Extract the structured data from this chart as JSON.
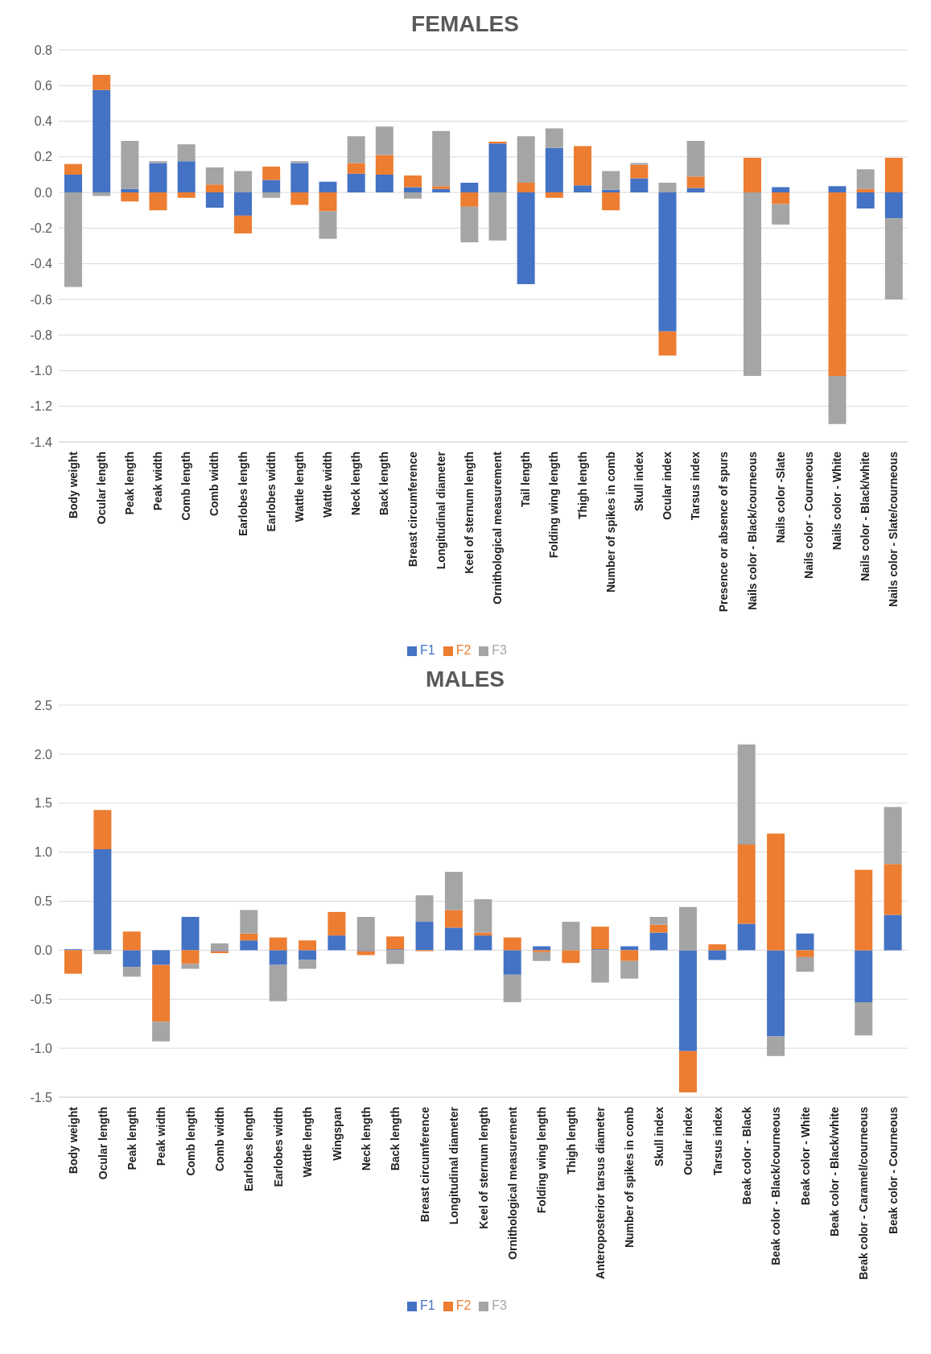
{
  "chart_data": [
    {
      "type": "bar",
      "title": "FEMALES",
      "stacked": true,
      "grid": "y",
      "legend": "bottom",
      "categories": [
        "Body weight",
        "Ocular length",
        "Peak length",
        "Peak width",
        "Comb length",
        "Comb width",
        "Earlobes length",
        "Earlobes width",
        "Wattle length",
        "Wattle width",
        "Neck length",
        "Back length",
        "Breast circumference",
        "Longitudinal diameter",
        "Keel of sternum length",
        "Ornithological measurement",
        "Tail length",
        "Folding wing length",
        "Thigh length",
        "Number of spikes in comb",
        "Skull index",
        "Ocular index",
        "Tarsus index",
        "Presence or absence of spurs",
        "Nails color - Black/courneous",
        "Nails color -Slate",
        "Nails color - Courneous",
        "Nails color - White",
        "Nails color - Black/white",
        "Nails color - Slate/courneous"
      ],
      "ylim": [
        -1.4,
        0.8
      ],
      "yticks": [
        0.8,
        0.6,
        0.4,
        0.2,
        {
          "value": 0,
          "label": "0.0"
        },
        -0.2,
        -0.4,
        -0.6,
        -0.8,
        {
          "value": -1,
          "label": "-1.0"
        },
        -1.2,
        -1.4
      ],
      "series": [
        {
          "name": "F1",
          "color": "#4472c4",
          "values": [
            0.1,
            0.575,
            0.02,
            0.165,
            0.175,
            -0.085,
            -0.13,
            0.07,
            0.165,
            0.06,
            0.105,
            0.1,
            0.03,
            0.02,
            0.055,
            0.275,
            -0.515,
            0.25,
            0.04,
            0.015,
            0.08,
            -0.78,
            0.025,
            0,
            0,
            0.03,
            0,
            0.035,
            -0.09,
            -0.145
          ]
        },
        {
          "name": "F2",
          "color": "#ed7d31",
          "values": [
            0.06,
            0.085,
            -0.05,
            -0.1,
            -0.03,
            0.045,
            -0.1,
            0.075,
            -0.07,
            -0.105,
            0.06,
            0.11,
            0.065,
            0.015,
            -0.08,
            0.01,
            0.055,
            -0.03,
            0.22,
            -0.1,
            0.075,
            -0.135,
            0.065,
            0,
            0.195,
            -0.065,
            0,
            -1.03,
            0.02,
            0.195
          ]
        },
        {
          "name": "F3",
          "color": "#a5a5a5",
          "values": [
            -0.53,
            -0.02,
            0.27,
            0.01,
            0.095,
            0.095,
            0.12,
            -0.03,
            0.01,
            -0.155,
            0.15,
            0.16,
            -0.035,
            0.31,
            -0.2,
            -0.27,
            0.26,
            0.11,
            null,
            0.105,
            0.01,
            0.055,
            0.2,
            0,
            -1.03,
            -0.115,
            0,
            -0.27,
            0.11,
            -0.455
          ]
        }
      ]
    },
    {
      "type": "bar",
      "title": "MALES",
      "stacked": true,
      "grid": "y",
      "legend": "bottom",
      "categories": [
        "Body weight",
        "Ocular length",
        "Peak length",
        "Peak width",
        "Comb length",
        "Comb width",
        "Earlobes length",
        "Earlobes width",
        "Wattle length",
        "Wingspan",
        "Neck length",
        "Back length",
        "Breast circumference",
        "Longitudinal diameter",
        "Keel of sternum length",
        "Ornithological measurement",
        "Folding wing length",
        "Thigh length",
        "Anteroposterior tarsus diameter",
        "Number of spikes in comb",
        "Skull index",
        "Ocular index",
        "Tarsus index",
        "Beak color - Black",
        "Beak color - Black/courneous",
        "Beak color - White",
        "Beak color - Black/white",
        "Beak color - Caramel/courneous",
        "Beak color - Courneous"
      ],
      "ylim": [
        -1.5,
        2.5
      ],
      "yticks": [
        2.5,
        {
          "value": 2,
          "label": "2.0"
        },
        1.5,
        {
          "value": 1,
          "label": "1.0"
        },
        0.5,
        {
          "value": 0,
          "label": "0.0"
        },
        -0.5,
        {
          "value": -1,
          "label": "-1.0"
        },
        -1.5
      ],
      "series": [
        {
          "name": "F1",
          "color": "#4472c4",
          "values": [
            0.01,
            1.03,
            -0.17,
            -0.15,
            0.34,
            -0.01,
            0.1,
            -0.15,
            -0.1,
            0.15,
            -0.01,
            0.01,
            0.29,
            0.23,
            0.15,
            -0.25,
            0.04,
            0,
            0.01,
            0.04,
            0.18,
            -1.03,
            -0.1,
            0.27,
            -0.88,
            0.17,
            0,
            -0.53,
            0.36
          ]
        },
        {
          "name": "F2",
          "color": "#ed7d31",
          "values": [
            -0.24,
            0.4,
            0.19,
            -0.58,
            -0.14,
            -0.02,
            0.07,
            0.13,
            0.1,
            0.24,
            -0.04,
            0.13,
            -0.01,
            0.18,
            0.03,
            0.13,
            -0.02,
            -0.13,
            0.23,
            -0.11,
            0.08,
            -0.42,
            0.06,
            0.81,
            1.19,
            -0.07,
            0,
            0.82,
            0.52
          ]
        },
        {
          "name": "F3",
          "color": "#a5a5a5",
          "values": [
            0,
            -0.04,
            -0.1,
            -0.2,
            -0.05,
            0.07,
            0.24,
            -0.37,
            -0.09,
            null,
            0.34,
            -0.14,
            0.27,
            0.39,
            0.34,
            -0.28,
            -0.09,
            0.29,
            -0.33,
            -0.18,
            0.08,
            0.44,
            null,
            1.02,
            -0.2,
            -0.15,
            0,
            -0.34,
            0.58
          ]
        }
      ]
    }
  ]
}
